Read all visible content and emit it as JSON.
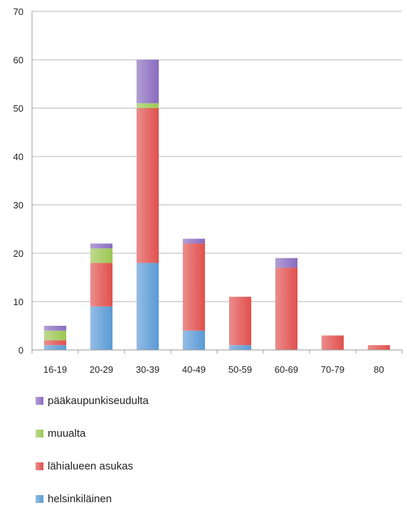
{
  "chart_data": {
    "type": "bar",
    "stacked": true,
    "categories": [
      "16-19",
      "20-29",
      "30-39",
      "40-49",
      "50-59",
      "60-69",
      "70-79",
      "80"
    ],
    "yticks": [
      "0",
      "10",
      "20",
      "30",
      "40",
      "50",
      "60",
      "70"
    ],
    "ylim": [
      0,
      70
    ],
    "grid": true,
    "legend_position": "bottom",
    "series": [
      {
        "name": "helsinkiläinen",
        "color": "#5a9ad6",
        "values": [
          1,
          9,
          18,
          4,
          1,
          0,
          0,
          0
        ]
      },
      {
        "name": "lähialueen asukas",
        "color": "#e0504d",
        "values": [
          1,
          9,
          32,
          18,
          10,
          17,
          3,
          1
        ]
      },
      {
        "name": "muualta",
        "color": "#9bc652",
        "values": [
          2,
          3,
          1,
          0,
          0,
          0,
          0,
          0
        ]
      },
      {
        "name": "pääkaupunkiseudulta",
        "color": "#8a6bbf",
        "values": [
          1,
          1,
          9,
          1,
          0,
          2,
          0,
          0
        ]
      }
    ]
  },
  "legend_order": [
    3,
    2,
    1,
    0
  ]
}
